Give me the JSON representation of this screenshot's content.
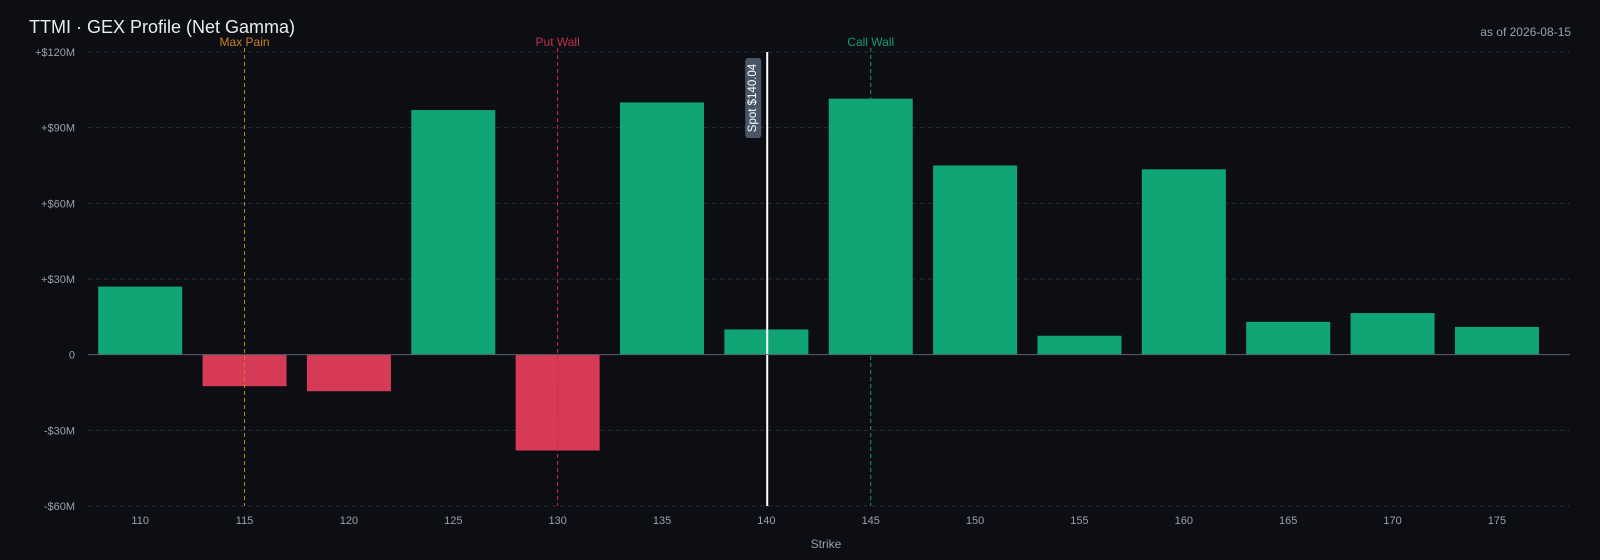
{
  "header": {
    "title": "TTMI · GEX Profile (Net Gamma)",
    "as_of": "as of 2026-08-15"
  },
  "chart_data": {
    "type": "bar",
    "title": "TTMI · GEX Profile (Net Gamma)",
    "xlabel": "Strike",
    "ylabel": "",
    "categories": [
      "110",
      "115",
      "120",
      "125",
      "130",
      "135",
      "140",
      "145",
      "150",
      "155",
      "160",
      "165",
      "170",
      "175"
    ],
    "x": [
      110,
      115,
      120,
      125,
      130,
      135,
      140,
      145,
      150,
      155,
      160,
      165,
      170,
      175
    ],
    "values": [
      27,
      -12.5,
      -14.5,
      97,
      -38,
      100,
      10,
      101.5,
      75,
      7.5,
      73.5,
      13,
      16.5,
      11
    ],
    "value_units": "$M net gamma exposure",
    "ylim": [
      -60,
      120
    ],
    "xlim": [
      107.5,
      178.5
    ],
    "y_ticks": [
      -60,
      -30,
      0,
      30,
      60,
      90,
      120
    ],
    "y_tick_labels": [
      "-$60M",
      "-$30M",
      "0",
      "+$30M",
      "+$60M",
      "+$90M",
      "+$120M"
    ],
    "grid": true,
    "legend": "none",
    "colors": {
      "positive": "#10a574",
      "negative": "#d63a56",
      "max_pain": "#c9821f",
      "put_wall": "#c4304b",
      "call_wall": "#159c70",
      "spot": "#ffffff",
      "spot_badge": "#4a5666"
    },
    "reference_lines": [
      {
        "name": "max-pain",
        "label": "Max Pain",
        "x": 115,
        "color": "#c9821f"
      },
      {
        "name": "put-wall",
        "label": "Put Wall",
        "x": 130,
        "color": "#c4304b"
      },
      {
        "name": "call-wall",
        "label": "Call Wall",
        "x": 145,
        "color": "#159c70"
      }
    ],
    "spot": {
      "label": "Spot $140.04",
      "x": 140.04
    }
  }
}
